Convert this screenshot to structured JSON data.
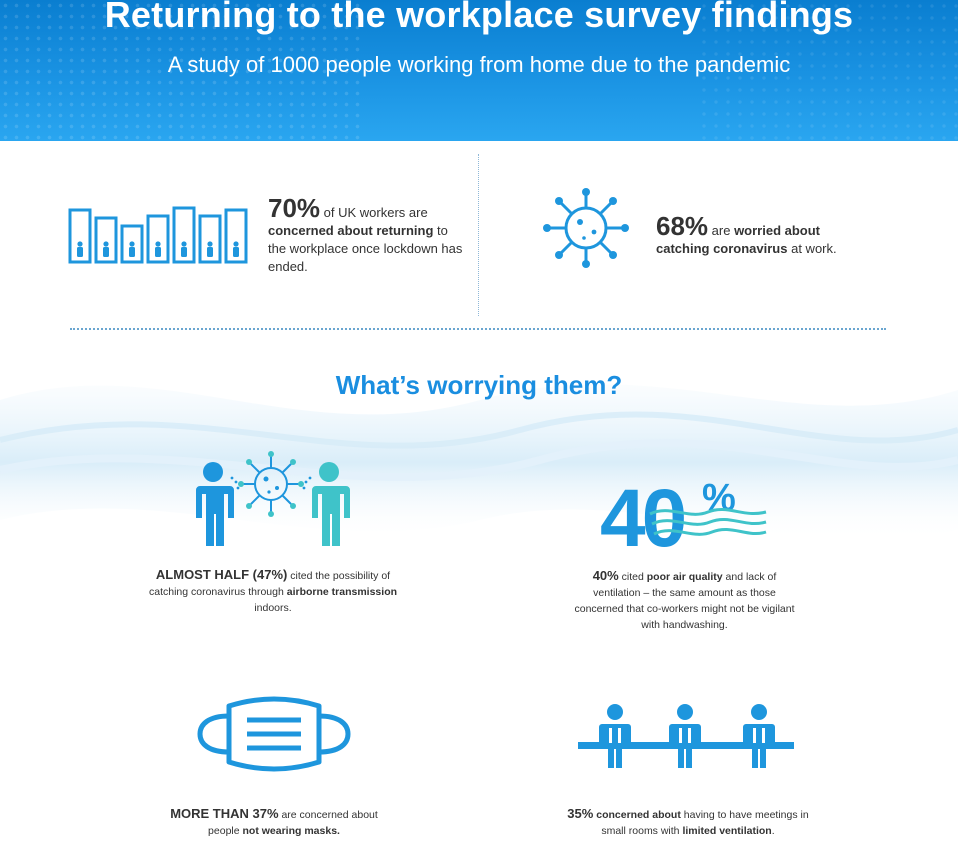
{
  "header": {
    "title": "Returning to the workplace survey findings",
    "subtitle": "A study of 1000 people working from home due to the pandemic"
  },
  "stat_left": {
    "figure": "70%",
    "text_1": " of UK workers are ",
    "bold": "concerned about returning",
    "text_2": " to the workplace once lockdown has ended."
  },
  "stat_right": {
    "figure": "68%",
    "text_1": " are ",
    "bold": "worried about catching coronavirus",
    "text_2": " at work."
  },
  "section_title": "What’s worrying them?",
  "cards": {
    "airborne": {
      "lead": "ALMOST HALF (47%)",
      "text_1": " cited the possibility of catching coronavirus through ",
      "bold": "airborne transmission",
      "text_2": " indoors."
    },
    "air_quality": {
      "graphic_number": "40",
      "graphic_percent": "%",
      "lead": "40%",
      "text_1": " cited ",
      "bold": "poor air quality",
      "text_2": " and lack of ventilation – the same amount as those concerned that co-workers might not be vigilant with handwashing."
    },
    "masks": {
      "lead": "MORE THAN 37%",
      "text_1": " are concerned about people ",
      "bold": "not wearing masks."
    },
    "meetings": {
      "lead": "35%",
      "bold_1": " concerned about",
      "text_1": " having to have meetings in small rooms with ",
      "bold_2": "limited ventilation",
      "text_2": "."
    }
  },
  "colors": {
    "header_blue": "#1a8ee0",
    "icon_blue": "#1e96dd",
    "icon_teal": "#3fc3c9",
    "text_dark": "#333333"
  },
  "icons": [
    "buildings-people-icon",
    "virus-icon",
    "people-virus-icon",
    "forty-percent-graphic",
    "face-mask-icon",
    "meeting-table-icon"
  ]
}
